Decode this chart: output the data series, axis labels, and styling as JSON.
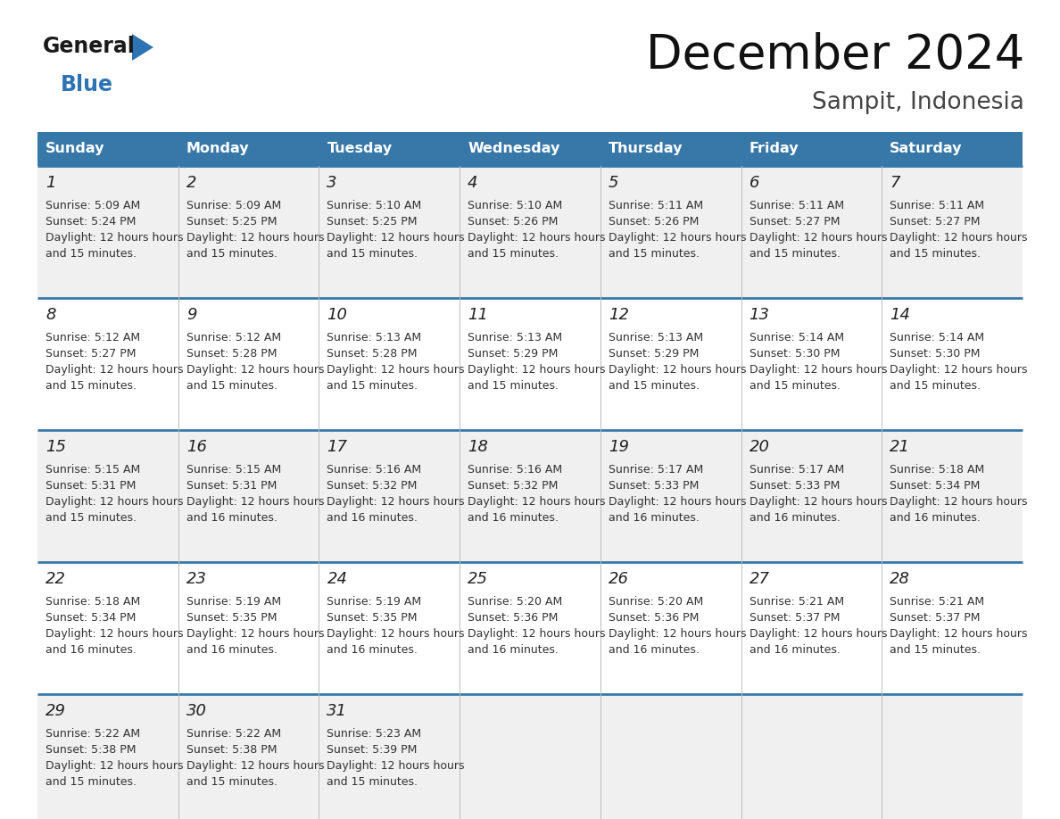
{
  "title": "December 2024",
  "subtitle": "Sampit, Indonesia",
  "days_of_week": [
    "Sunday",
    "Monday",
    "Tuesday",
    "Wednesday",
    "Thursday",
    "Friday",
    "Saturday"
  ],
  "header_bg": "#3878a8",
  "header_text_color": "#ffffff",
  "row_bg_odd": "#f0f0f0",
  "row_bg_even": "#ffffff",
  "cell_text_color": "#333333",
  "day_num_color": "#222222",
  "divider_color": "#3878a8",
  "logo_general_color": "#1a1a1a",
  "logo_blue_color": "#2E74B5",
  "calendar_data": [
    [
      {
        "day": 1,
        "sunrise": "5:09 AM",
        "sunset": "5:24 PM",
        "daylight": "12 hours and 15 minutes"
      },
      {
        "day": 2,
        "sunrise": "5:09 AM",
        "sunset": "5:25 PM",
        "daylight": "12 hours and 15 minutes"
      },
      {
        "day": 3,
        "sunrise": "5:10 AM",
        "sunset": "5:25 PM",
        "daylight": "12 hours and 15 minutes"
      },
      {
        "day": 4,
        "sunrise": "5:10 AM",
        "sunset": "5:26 PM",
        "daylight": "12 hours and 15 minutes"
      },
      {
        "day": 5,
        "sunrise": "5:11 AM",
        "sunset": "5:26 PM",
        "daylight": "12 hours and 15 minutes"
      },
      {
        "day": 6,
        "sunrise": "5:11 AM",
        "sunset": "5:27 PM",
        "daylight": "12 hours and 15 minutes"
      },
      {
        "day": 7,
        "sunrise": "5:11 AM",
        "sunset": "5:27 PM",
        "daylight": "12 hours and 15 minutes"
      }
    ],
    [
      {
        "day": 8,
        "sunrise": "5:12 AM",
        "sunset": "5:27 PM",
        "daylight": "12 hours and 15 minutes"
      },
      {
        "day": 9,
        "sunrise": "5:12 AM",
        "sunset": "5:28 PM",
        "daylight": "12 hours and 15 minutes"
      },
      {
        "day": 10,
        "sunrise": "5:13 AM",
        "sunset": "5:28 PM",
        "daylight": "12 hours and 15 minutes"
      },
      {
        "day": 11,
        "sunrise": "5:13 AM",
        "sunset": "5:29 PM",
        "daylight": "12 hours and 15 minutes"
      },
      {
        "day": 12,
        "sunrise": "5:13 AM",
        "sunset": "5:29 PM",
        "daylight": "12 hours and 15 minutes"
      },
      {
        "day": 13,
        "sunrise": "5:14 AM",
        "sunset": "5:30 PM",
        "daylight": "12 hours and 15 minutes"
      },
      {
        "day": 14,
        "sunrise": "5:14 AM",
        "sunset": "5:30 PM",
        "daylight": "12 hours and 15 minutes"
      }
    ],
    [
      {
        "day": 15,
        "sunrise": "5:15 AM",
        "sunset": "5:31 PM",
        "daylight": "12 hours and 15 minutes"
      },
      {
        "day": 16,
        "sunrise": "5:15 AM",
        "sunset": "5:31 PM",
        "daylight": "12 hours and 16 minutes"
      },
      {
        "day": 17,
        "sunrise": "5:16 AM",
        "sunset": "5:32 PM",
        "daylight": "12 hours and 16 minutes"
      },
      {
        "day": 18,
        "sunrise": "5:16 AM",
        "sunset": "5:32 PM",
        "daylight": "12 hours and 16 minutes"
      },
      {
        "day": 19,
        "sunrise": "5:17 AM",
        "sunset": "5:33 PM",
        "daylight": "12 hours and 16 minutes"
      },
      {
        "day": 20,
        "sunrise": "5:17 AM",
        "sunset": "5:33 PM",
        "daylight": "12 hours and 16 minutes"
      },
      {
        "day": 21,
        "sunrise": "5:18 AM",
        "sunset": "5:34 PM",
        "daylight": "12 hours and 16 minutes"
      }
    ],
    [
      {
        "day": 22,
        "sunrise": "5:18 AM",
        "sunset": "5:34 PM",
        "daylight": "12 hours and 16 minutes"
      },
      {
        "day": 23,
        "sunrise": "5:19 AM",
        "sunset": "5:35 PM",
        "daylight": "12 hours and 16 minutes"
      },
      {
        "day": 24,
        "sunrise": "5:19 AM",
        "sunset": "5:35 PM",
        "daylight": "12 hours and 16 minutes"
      },
      {
        "day": 25,
        "sunrise": "5:20 AM",
        "sunset": "5:36 PM",
        "daylight": "12 hours and 16 minutes"
      },
      {
        "day": 26,
        "sunrise": "5:20 AM",
        "sunset": "5:36 PM",
        "daylight": "12 hours and 16 minutes"
      },
      {
        "day": 27,
        "sunrise": "5:21 AM",
        "sunset": "5:37 PM",
        "daylight": "12 hours and 16 minutes"
      },
      {
        "day": 28,
        "sunrise": "5:21 AM",
        "sunset": "5:37 PM",
        "daylight": "12 hours and 15 minutes"
      }
    ],
    [
      {
        "day": 29,
        "sunrise": "5:22 AM",
        "sunset": "5:38 PM",
        "daylight": "12 hours and 15 minutes"
      },
      {
        "day": 30,
        "sunrise": "5:22 AM",
        "sunset": "5:38 PM",
        "daylight": "12 hours and 15 minutes"
      },
      {
        "day": 31,
        "sunrise": "5:23 AM",
        "sunset": "5:39 PM",
        "daylight": "12 hours and 15 minutes"
      },
      null,
      null,
      null,
      null
    ]
  ]
}
